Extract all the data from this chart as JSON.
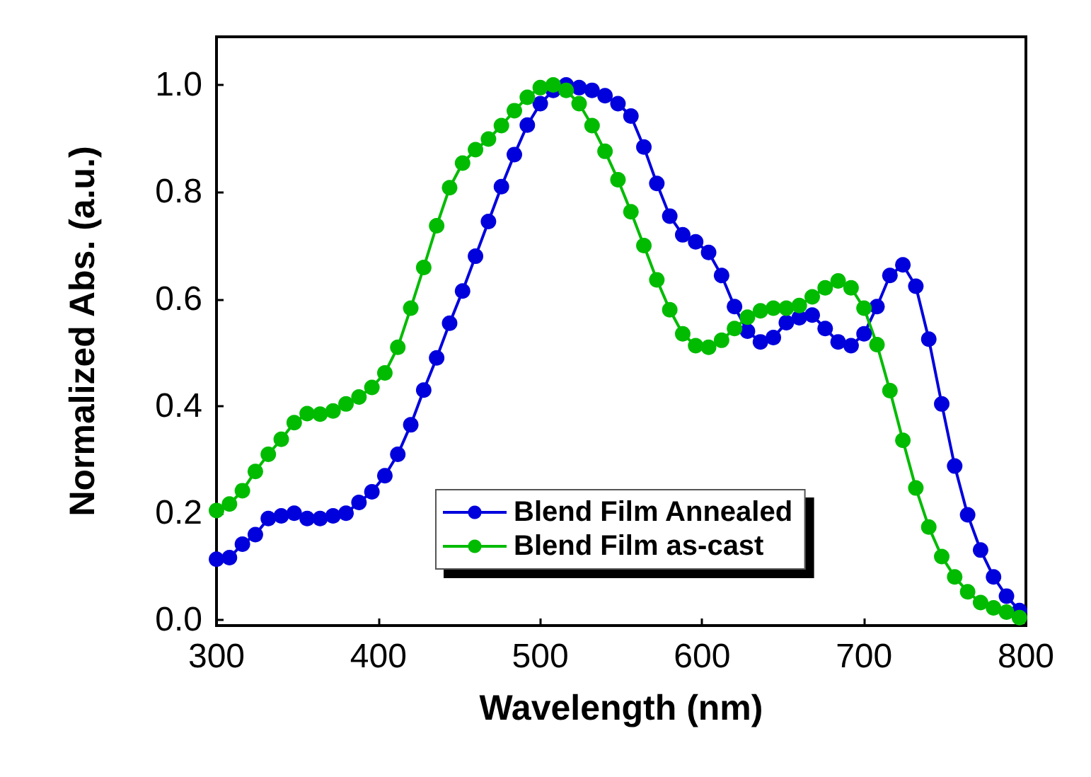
{
  "chart_data": {
    "type": "line",
    "xlabel": "Wavelength (nm)",
    "ylabel": "Normalized Abs. (a.u.)",
    "x": [
      300,
      308,
      316,
      324,
      332,
      340,
      348,
      356,
      364,
      372,
      380,
      388,
      396,
      404,
      412,
      420,
      428,
      436,
      444,
      452,
      460,
      468,
      476,
      484,
      492,
      500,
      508,
      516,
      524,
      532,
      540,
      548,
      556,
      564,
      572,
      580,
      588,
      596,
      604,
      612,
      620,
      628,
      636,
      644,
      652,
      660,
      668,
      676,
      684,
      692,
      700,
      708,
      716,
      724,
      732,
      740,
      748,
      756,
      764,
      772,
      780,
      788,
      796
    ],
    "series": [
      {
        "name": "Blend Film Annealed",
        "color": "#0000dd",
        "values": [
          0.114,
          0.117,
          0.142,
          0.16,
          0.19,
          0.195,
          0.2,
          0.19,
          0.19,
          0.195,
          0.2,
          0.22,
          0.24,
          0.27,
          0.31,
          0.365,
          0.43,
          0.49,
          0.555,
          0.615,
          0.68,
          0.745,
          0.81,
          0.87,
          0.925,
          0.965,
          0.99,
          1.0,
          0.995,
          0.99,
          0.98,
          0.965,
          0.942,
          0.884,
          0.816,
          0.755,
          0.72,
          0.707,
          0.687,
          0.644,
          0.586,
          0.54,
          0.52,
          0.528,
          0.556,
          0.565,
          0.57,
          0.545,
          0.52,
          0.513,
          0.535,
          0.586,
          0.644,
          0.664,
          0.624,
          0.525,
          0.404,
          0.288,
          0.197,
          0.131,
          0.081,
          0.045,
          0.018
        ]
      },
      {
        "name": "Blend Film as-cast",
        "color": "#00bb00",
        "values": [
          0.205,
          0.217,
          0.242,
          0.278,
          0.31,
          0.338,
          0.369,
          0.386,
          0.385,
          0.391,
          0.404,
          0.417,
          0.435,
          0.462,
          0.51,
          0.583,
          0.659,
          0.737,
          0.808,
          0.854,
          0.879,
          0.899,
          0.924,
          0.952,
          0.977,
          0.995,
          1.0,
          0.99,
          0.965,
          0.924,
          0.876,
          0.823,
          0.763,
          0.7,
          0.636,
          0.58,
          0.535,
          0.513,
          0.51,
          0.523,
          0.545,
          0.566,
          0.578,
          0.583,
          0.583,
          0.588,
          0.604,
          0.621,
          0.634,
          0.621,
          0.583,
          0.515,
          0.429,
          0.336,
          0.247,
          0.174,
          0.119,
          0.081,
          0.053,
          0.033,
          0.023,
          0.015,
          0.005
        ]
      }
    ],
    "xlim": [
      300,
      800
    ],
    "xticks": [
      300,
      400,
      500,
      600,
      700,
      800
    ],
    "ylim": [
      -0.01,
      1.09
    ],
    "yticks": [
      {
        "value": 0,
        "label": "0.0"
      },
      {
        "value": 0.2,
        "label": "0.2"
      },
      {
        "value": 0.4,
        "label": "0.4"
      },
      {
        "value": 0.6,
        "label": "0.6"
      },
      {
        "value": 0.8,
        "label": "0.8"
      },
      {
        "value": 1,
        "label": "1.0"
      }
    ],
    "grid": false,
    "legend": "bottom",
    "marker": "circle",
    "line_style": "solid"
  }
}
